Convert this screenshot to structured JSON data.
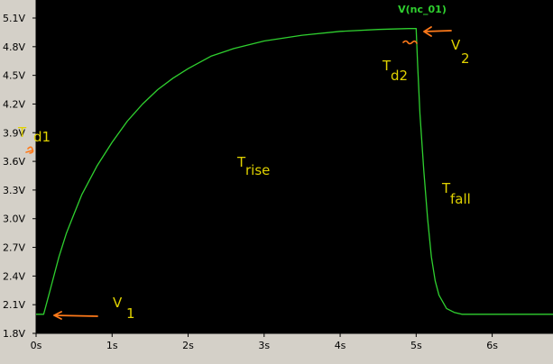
{
  "chart_data": {
    "type": "line",
    "title": "",
    "xlabel": "",
    "ylabel": "",
    "xlim": [
      0,
      6.8
    ],
    "ylim": [
      1.8,
      5.1
    ],
    "x_ticks": [
      0,
      1,
      2,
      3,
      4,
      5,
      6
    ],
    "x_tick_labels": [
      "0s",
      "1s",
      "2s",
      "3s",
      "4s",
      "5s",
      "6s"
    ],
    "y_ticks": [
      5.1,
      4.8,
      4.5,
      4.2,
      3.9,
      3.6,
      3.3,
      3.0,
      2.7,
      2.4,
      2.1,
      1.8
    ],
    "y_tick_labels": [
      "5.1V",
      "4.8V",
      "4.5V",
      "4.2V",
      "3.9V",
      "3.6V",
      "3.3V",
      "3.0V",
      "2.7V",
      "2.4V",
      "2.1V",
      "1.8V"
    ],
    "grid": false,
    "background_color": "#000000",
    "series": [
      {
        "name": "V(nc_01)",
        "color": "#2fd02f",
        "x": [
          0.0,
          0.1,
          0.2,
          0.3,
          0.4,
          0.5,
          0.6,
          0.8,
          1.0,
          1.2,
          1.4,
          1.6,
          1.8,
          2.0,
          2.3,
          2.6,
          3.0,
          3.5,
          4.0,
          4.5,
          4.9,
          5.0,
          5.02,
          5.05,
          5.1,
          5.15,
          5.2,
          5.25,
          5.3,
          5.4,
          5.5,
          5.6,
          5.8,
          6.0,
          6.4,
          6.8
        ],
        "y": [
          2.0,
          2.0,
          2.3,
          2.6,
          2.85,
          3.05,
          3.25,
          3.55,
          3.8,
          4.02,
          4.2,
          4.35,
          4.47,
          4.57,
          4.7,
          4.78,
          4.86,
          4.92,
          4.96,
          4.98,
          4.99,
          4.99,
          4.6,
          4.1,
          3.5,
          3.0,
          2.6,
          2.35,
          2.2,
          2.06,
          2.02,
          2.0,
          2.0,
          2.0,
          2.0,
          2.0
        ]
      }
    ],
    "annotations": [
      {
        "main": "T",
        "sub": "d1"
      },
      {
        "main": "T",
        "sub": "rise"
      },
      {
        "main": "T",
        "sub": "d2"
      },
      {
        "main": "T",
        "sub": "fall"
      },
      {
        "main": "V",
        "sub": "1"
      },
      {
        "main": "V",
        "sub": "2"
      }
    ],
    "annotation_color": "#e0d200",
    "marker_color": "#ff7a1a"
  }
}
